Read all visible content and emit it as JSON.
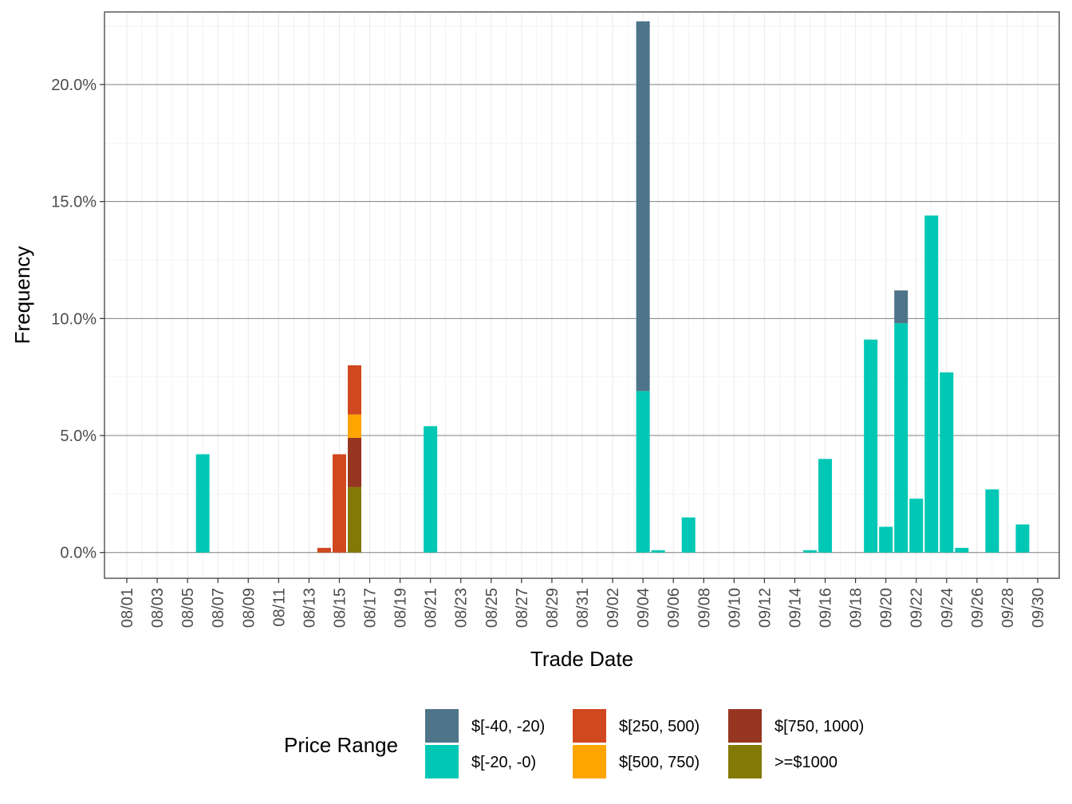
{
  "chart_data": {
    "type": "bar",
    "stacked": true,
    "xlabel": "Trade Date",
    "ylabel": "Frequency",
    "ylim": [
      -1.1,
      23.1
    ],
    "y_ticks": [
      0,
      5,
      10,
      15,
      20
    ],
    "y_tick_labels": [
      "0.0%",
      "5.0%",
      "10.0%",
      "15.0%",
      "20.0%"
    ],
    "x_tick_labels": [
      "08/01",
      "08/03",
      "08/05",
      "08/07",
      "08/09",
      "08/11",
      "08/13",
      "08/15",
      "08/17",
      "08/19",
      "08/21",
      "08/23",
      "08/25",
      "08/27",
      "08/29",
      "08/31",
      "09/02",
      "09/04",
      "09/06",
      "09/08",
      "09/10",
      "09/12",
      "09/14",
      "09/16",
      "09/18",
      "09/20",
      "09/22",
      "09/24",
      "09/26",
      "09/28",
      "09/30"
    ],
    "legend": {
      "title": "Price Range",
      "position": "bottom"
    },
    "series": [
      {
        "name": "$[-40, -20)",
        "color": "#4E7489",
        "points": [
          {
            "date": "09/04",
            "value": 15.8
          },
          {
            "date": "09/21",
            "value": 1.4
          }
        ]
      },
      {
        "name": "$[-20, -0)",
        "color": "#00C8B4",
        "points": [
          {
            "date": "08/06",
            "value": 4.2
          },
          {
            "date": "08/21",
            "value": 5.4
          },
          {
            "date": "09/04",
            "value": 6.9
          },
          {
            "date": "09/05",
            "value": 0.1
          },
          {
            "date": "09/07",
            "value": 1.5
          },
          {
            "date": "09/15",
            "value": 0.1
          },
          {
            "date": "09/16",
            "value": 4.0
          },
          {
            "date": "09/19",
            "value": 9.1
          },
          {
            "date": "09/20",
            "value": 1.1
          },
          {
            "date": "09/21",
            "value": 9.8
          },
          {
            "date": "09/22",
            "value": 2.3
          },
          {
            "date": "09/23",
            "value": 14.4
          },
          {
            "date": "09/24",
            "value": 7.7
          },
          {
            "date": "09/25",
            "value": 0.2
          },
          {
            "date": "09/27",
            "value": 2.7
          },
          {
            "date": "09/29",
            "value": 1.2
          }
        ]
      },
      {
        "name": "$[250, 500)",
        "color": "#D1471F",
        "points": [
          {
            "date": "08/14",
            "value": 0.2
          },
          {
            "date": "08/15",
            "value": 4.2
          },
          {
            "date": "08/16",
            "value": 2.1
          }
        ]
      },
      {
        "name": "$[500, 750)",
        "color": "#FFA500",
        "points": [
          {
            "date": "08/16",
            "value": 1.0
          }
        ]
      },
      {
        "name": "$[750, 1000)",
        "color": "#963520",
        "points": [
          {
            "date": "08/16",
            "value": 2.1
          }
        ]
      },
      {
        "name": ">=$1000",
        "color": "#827A04",
        "points": [
          {
            "date": "08/16",
            "value": 2.8
          }
        ]
      }
    ],
    "stack_order": [
      ">=$1000",
      "$[750, 1000)",
      "$[500, 750)",
      "$[250, 500)",
      "$[-20, -0)",
      "$[-40, -20)"
    ]
  }
}
